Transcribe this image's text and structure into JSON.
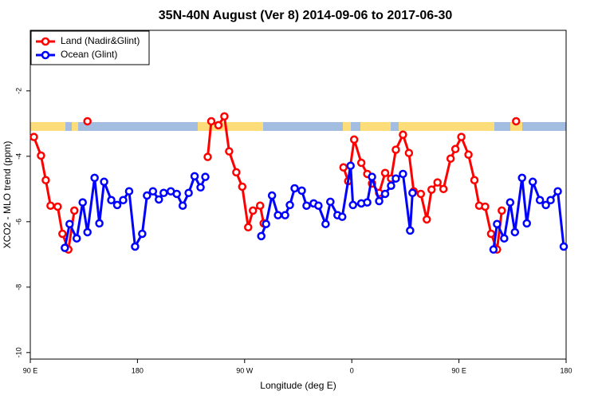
{
  "chart_data": {
    "type": "line",
    "title": "35N-40N August (Ver 8)   2014-09-06 to 2017-06-30",
    "xlabel": "Longitude (deg E)",
    "ylabel": "XCO2 - MLO trend (ppm)",
    "xlim": [
      90,
      540
    ],
    "ylim": [
      -10.2,
      -0.15
    ],
    "xticks": [
      {
        "value": 90,
        "label": "90 E"
      },
      180,
      {
        "value": 270,
        "label": "90 W"
      },
      {
        "value": 360,
        "label": "0"
      },
      {
        "value": 450,
        "label": "90 E"
      },
      {
        "value": 540,
        "label": "180"
      }
    ],
    "yticks": [
      -2,
      -4,
      -6,
      -8,
      -10
    ],
    "legend": "upper left",
    "series": [
      {
        "name": "Land (Nadir&Glint)",
        "color": "#ff0000",
        "x": [
          93,
          99,
          103,
          107,
          113,
          117,
          122,
          127,
          null,
          138,
          null,
          239,
          242,
          248,
          253,
          257,
          263,
          268,
          273,
          277,
          283,
          286,
          null,
          353,
          357,
          362,
          368,
          373,
          377,
          383,
          388,
          393,
          397,
          403,
          408,
          412,
          418,
          423,
          427,
          432,
          437,
          443,
          447,
          452,
          458,
          463,
          467,
          472,
          477,
          482,
          486,
          null,
          498
        ],
        "values": [
          -3.41,
          -3.98,
          -4.73,
          -5.51,
          -5.54,
          -6.37,
          -6.85,
          -5.66,
          null,
          -2.93,
          null,
          -4.02,
          -2.93,
          -3.05,
          -2.78,
          -3.85,
          -4.49,
          -4.93,
          -6.17,
          -5.66,
          -5.51,
          -6.05,
          null,
          -4.34,
          -4.76,
          -3.49,
          -4.2,
          -4.54,
          -4.83,
          -5.12,
          -4.51,
          -4.68,
          -3.8,
          -3.34,
          -3.9,
          -5.07,
          -5.15,
          -5.93,
          -5.02,
          -4.8,
          -5.0,
          -4.07,
          -3.78,
          -3.41,
          -3.95,
          -4.73,
          -5.51,
          -5.54,
          -6.37,
          -6.85,
          -5.66,
          null,
          -2.93
        ]
      },
      {
        "name": "Ocean (Glint)",
        "color": "#0000ff",
        "x": [
          119,
          123,
          129,
          134,
          138,
          144,
          148,
          152,
          158,
          163,
          168,
          173,
          178,
          184,
          188,
          193,
          198,
          202,
          208,
          213,
          218,
          223,
          228,
          233,
          237,
          null,
          284,
          288,
          293,
          298,
          304,
          308,
          312,
          318,
          322,
          328,
          332,
          338,
          342,
          348,
          352,
          359,
          361,
          368,
          373,
          377,
          383,
          388,
          393,
          397,
          403,
          409,
          411,
          null,
          479,
          482,
          488,
          493,
          497,
          503,
          507,
          512,
          518,
          523,
          527,
          533,
          538
        ],
        "values": [
          -6.8,
          -6.07,
          -6.51,
          -5.41,
          -6.32,
          -4.66,
          -6.05,
          -4.78,
          -5.34,
          -5.49,
          -5.34,
          -5.07,
          -6.76,
          -6.37,
          -5.2,
          -5.07,
          -5.32,
          -5.12,
          -5.07,
          -5.15,
          -5.51,
          -5.12,
          -4.61,
          -4.95,
          -4.63,
          null,
          -6.44,
          -6.07,
          -5.2,
          -5.8,
          -5.8,
          -5.49,
          -4.98,
          -5.05,
          -5.51,
          -5.44,
          -5.51,
          -6.07,
          -5.39,
          -5.8,
          -5.85,
          -4.29,
          -5.49,
          -5.44,
          -5.41,
          -4.63,
          -5.37,
          -5.15,
          -4.9,
          -4.68,
          -4.54,
          -6.27,
          -5.12,
          null,
          -6.85,
          -6.07,
          -6.51,
          -5.41,
          -6.32,
          -4.66,
          -6.05,
          -4.78,
          -5.34,
          -5.49,
          -5.34,
          -5.07,
          -6.76
        ]
      }
    ]
  }
}
